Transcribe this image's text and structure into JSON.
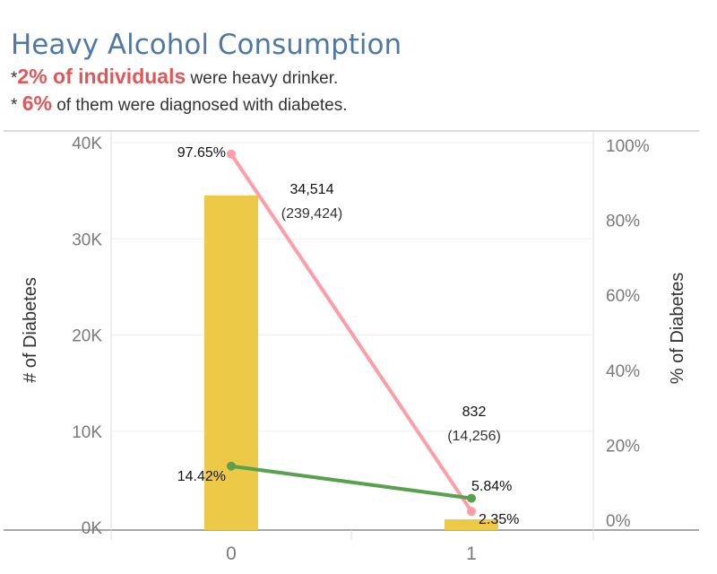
{
  "title": "Heavy Alcohol Consumption",
  "subtitle_1": {
    "prefix": "*",
    "highlight": "2% of individuals",
    "rest": " were heavy drinker."
  },
  "subtitle_2": {
    "prefix": "* ",
    "highlight": "6%",
    "rest": " of them were diagnosed with diabetes."
  },
  "colors": {
    "title": "#4e79a7",
    "highlight": "#e15759",
    "bar": "#edc948",
    "pink_line": "#ff9da7",
    "green_line": "#59a14f"
  },
  "chart_data": {
    "type": "bar",
    "categories": [
      "0",
      "1"
    ],
    "xlabel": "",
    "ylabel_left": "# of Diabetes",
    "ylabel_right": "% of Diabetes",
    "ylim_left": [
      0,
      40000
    ],
    "ylim_right": [
      0,
      100
    ],
    "left_ticks": [
      "0K",
      "10K",
      "20K",
      "30K",
      "40K"
    ],
    "left_tick_values": [
      0,
      10000,
      20000,
      30000,
      40000
    ],
    "right_ticks": [
      "0%",
      "20%",
      "40%",
      "60%",
      "80%",
      "100%"
    ],
    "right_tick_values": [
      0,
      20,
      40,
      60,
      80,
      100
    ],
    "bars": {
      "axis": "left",
      "values": [
        34514,
        832
      ],
      "labels": [
        "34,514",
        "832"
      ],
      "sub_labels": [
        "(239,424)",
        "(14,256)"
      ]
    },
    "series": [
      {
        "axis": "right",
        "color": "#ff9da7",
        "values": [
          97.65,
          2.35
        ],
        "labels": [
          "97.65%",
          "2.35%"
        ]
      },
      {
        "axis": "right",
        "color": "#59a14f",
        "values": [
          14.42,
          5.84
        ],
        "labels": [
          "14.42%",
          "5.84%"
        ]
      }
    ],
    "grid": true
  }
}
